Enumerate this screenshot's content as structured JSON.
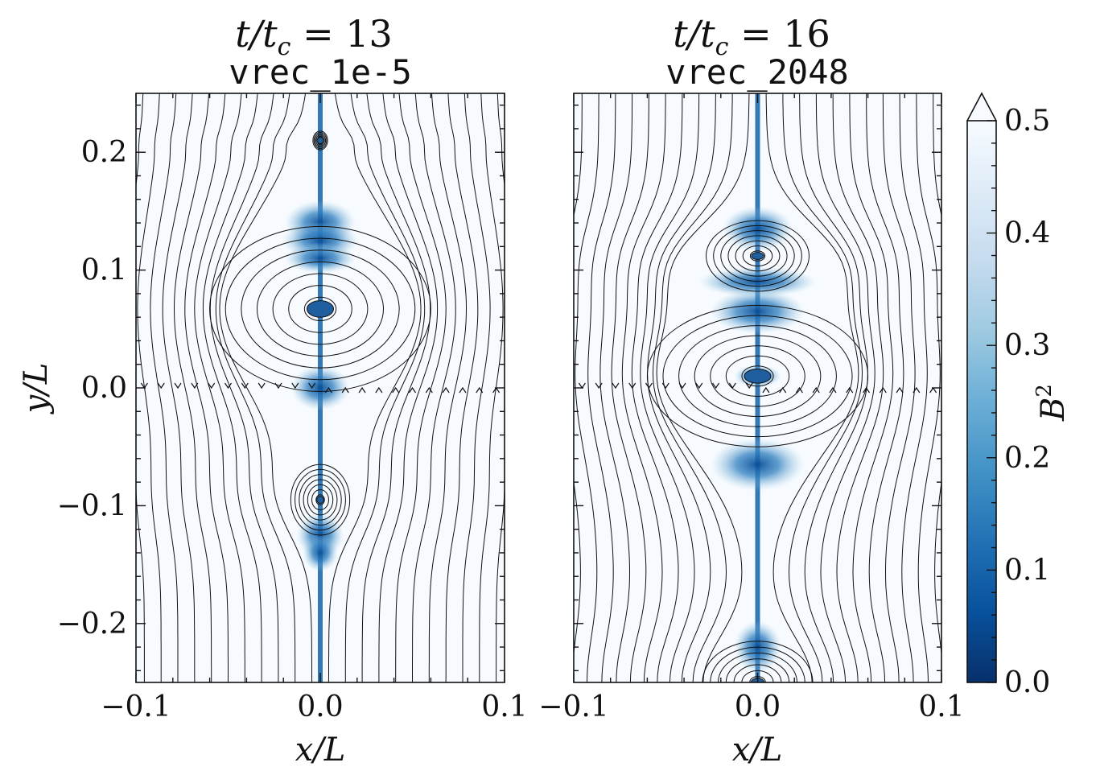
{
  "chart_data": [
    {
      "type": "heatmap",
      "title": "t/t_c = 13",
      "title_parts": {
        "prefix": "t/t",
        "sub": "c",
        "suffix": " = 13"
      },
      "subtitle": "vrec_1e-5",
      "xlabel": "x/L",
      "ylabel": "y/L",
      "xlim": [
        -0.1,
        0.1
      ],
      "ylim": [
        -0.25,
        0.25
      ],
      "xticks": [
        "−0.1",
        "0.0",
        "0.1"
      ],
      "xtick_values": [
        -0.1,
        0.0,
        0.1
      ],
      "yticks": [
        "−0.2",
        "−0.1",
        "0.0",
        "0.1",
        "0.2"
      ],
      "ytick_values": [
        -0.2,
        -0.1,
        0.0,
        0.1,
        0.2
      ],
      "overlay": "magnetic field streamlines",
      "plasmoids": [
        {
          "y": 0.21,
          "ry": 0.008,
          "rx": 0.004
        },
        {
          "y": 0.067,
          "ry": 0.07,
          "rx": 0.06
        },
        {
          "y": -0.095,
          "ry": 0.03,
          "rx": 0.016
        }
      ],
      "low_b2_blobs": [
        {
          "y": 0.14,
          "w": 0.012,
          "h": 0.012
        },
        {
          "y": 0.125,
          "w": 0.013,
          "h": 0.01
        },
        {
          "y": 0.11,
          "w": 0.012,
          "h": 0.008
        },
        {
          "y": 0.0,
          "w": 0.01,
          "h": 0.012
        },
        {
          "y": -0.125,
          "w": 0.008,
          "h": 0.012
        },
        {
          "y": -0.14,
          "w": 0.006,
          "h": 0.01
        }
      ]
    },
    {
      "type": "heatmap",
      "title": "t/t_c = 16",
      "title_parts": {
        "prefix": "t/t",
        "sub": "c",
        "suffix": " = 16"
      },
      "subtitle": "vrec_2048",
      "xlabel": "x/L",
      "xlim": [
        -0.1,
        0.1
      ],
      "ylim": [
        -0.25,
        0.25
      ],
      "xticks": [
        "−0.1",
        "0.0",
        "0.1"
      ],
      "xtick_values": [
        -0.1,
        0.0,
        0.1
      ],
      "overlay": "magnetic field streamlines",
      "plasmoids": [
        {
          "y": 0.112,
          "ry": 0.03,
          "rx": 0.028
        },
        {
          "y": 0.01,
          "ry": 0.06,
          "rx": 0.06
        },
        {
          "y": -0.25,
          "ry": 0.035,
          "rx": 0.03
        }
      ],
      "low_b2_blobs": [
        {
          "y": 0.135,
          "w": 0.012,
          "h": 0.012
        },
        {
          "y": 0.09,
          "w": 0.02,
          "h": 0.008
        },
        {
          "y": 0.065,
          "w": 0.016,
          "h": 0.012
        },
        {
          "y": 0.01,
          "w": 0.008,
          "h": 0.006
        },
        {
          "y": -0.065,
          "w": 0.016,
          "h": 0.014
        },
        {
          "y": -0.22,
          "w": 0.008,
          "h": 0.014
        }
      ]
    }
  ],
  "colorbar": {
    "label": "B²",
    "label_parts": {
      "base": "B",
      "sup": "2"
    },
    "colormap": "Blues_r",
    "min": 0.0,
    "max": 0.5,
    "extend": "max",
    "ticks": [
      "0.0",
      "0.1",
      "0.2",
      "0.3",
      "0.4",
      "0.5"
    ],
    "tick_values": [
      0.0,
      0.1,
      0.2,
      0.3,
      0.4,
      0.5
    ],
    "colors": [
      "#08306b",
      "#08519c",
      "#2171b5",
      "#4292c6",
      "#6baed6",
      "#9ecae1",
      "#c6dbef",
      "#deebf7",
      "#f7fbff"
    ]
  }
}
